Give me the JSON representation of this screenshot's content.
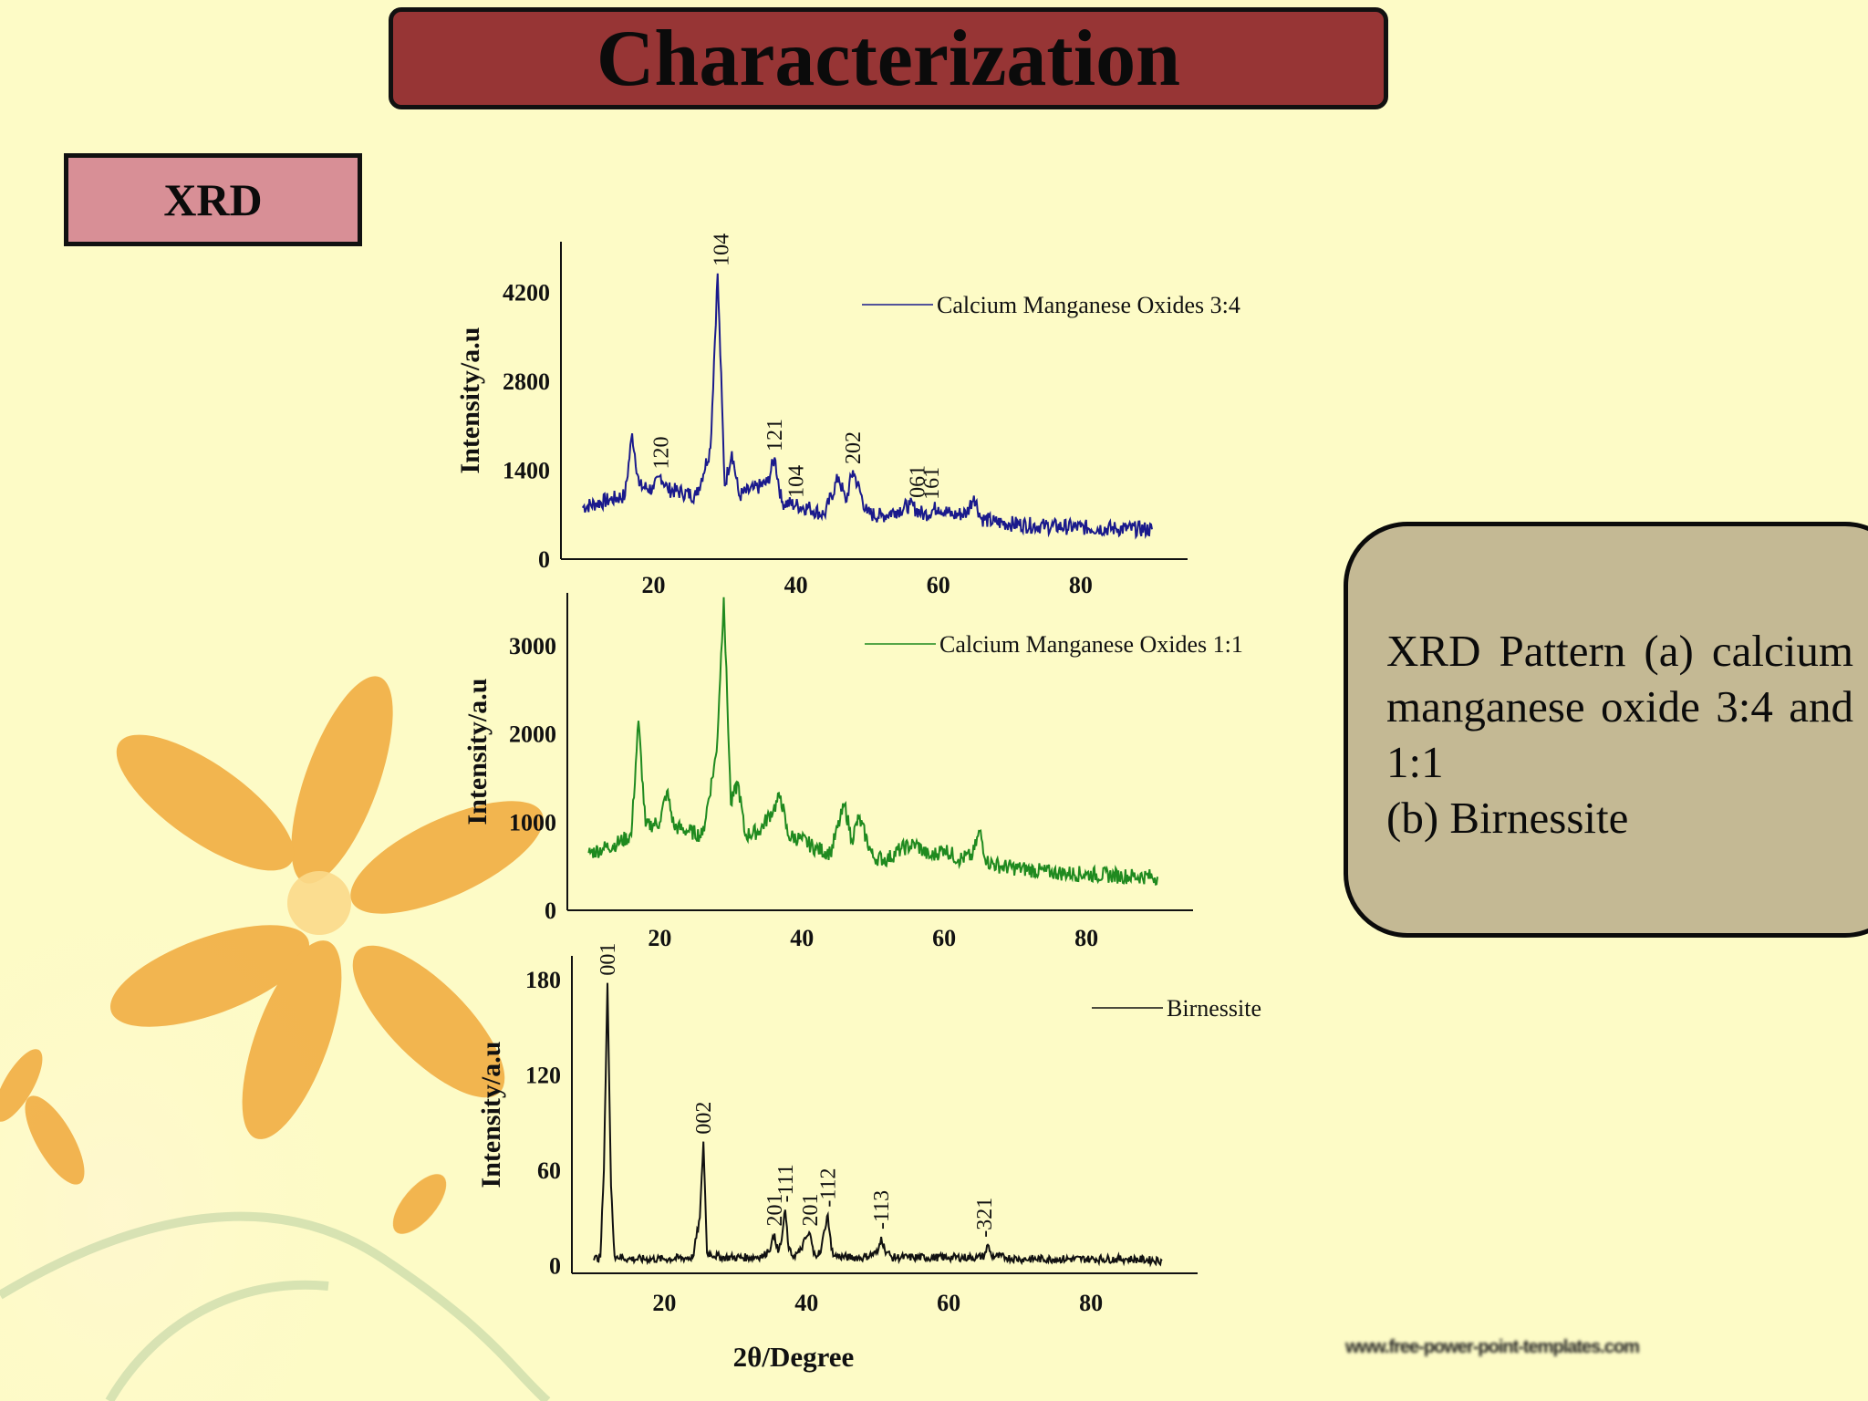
{
  "slide": {
    "title": "Characterization",
    "section_label": "XRD",
    "note_lines": [
      "XRD Pattern (a) calcium manganese oxide 3:4 and 1:1",
      "(b) Birnessite"
    ],
    "footer_url": "www.free-power-point-templates.com"
  },
  "colors": {
    "title_fill": "#973535",
    "xrd_fill": "#d88f96",
    "note_fill": "#c4b994",
    "bg": "#fdfbc6",
    "series_a": "#1a1a8c",
    "series_b": "#1f8a1f",
    "series_c": "#111111"
  },
  "chart_data": [
    {
      "type": "line",
      "ylabel": "Intensity/a.u",
      "xlabel": "",
      "xticks": [
        20,
        40,
        60,
        80
      ],
      "yticks": [
        0,
        1400,
        2800,
        4200
      ],
      "xlim": [
        7,
        95
      ],
      "ylim": [
        0,
        5000
      ],
      "series": [
        {
          "name": "Calcium Manganese Oxides  3:4",
          "color": "#1a1a8c",
          "x": [
            10,
            12,
            14,
            16,
            17,
            18,
            20,
            21,
            22,
            24,
            26,
            28,
            29,
            30,
            31,
            32,
            34,
            36,
            37,
            38,
            40,
            42,
            44,
            46,
            47,
            48,
            50,
            52,
            54,
            56,
            58,
            60,
            62,
            64,
            65,
            66,
            68,
            70,
            75,
            80,
            85,
            90
          ],
          "y": [
            820,
            880,
            940,
            1000,
            1980,
            1150,
            1100,
            1320,
            1100,
            1050,
            1000,
            1750,
            4500,
            1150,
            1700,
            1000,
            1100,
            1200,
            1600,
            900,
            850,
            800,
            700,
            1300,
            900,
            1400,
            720,
            680,
            760,
            850,
            700,
            820,
            690,
            730,
            1000,
            640,
            580,
            560,
            520,
            500,
            480,
            470
          ]
        }
      ],
      "peak_labels": [
        {
          "label": "104",
          "x": 29.5,
          "y": 4500
        },
        {
          "label": "120",
          "x": 21,
          "y": 1300
        },
        {
          "label": "121",
          "x": 37,
          "y": 1580
        },
        {
          "label": "104",
          "x": 40,
          "y": 850
        },
        {
          "label": "202",
          "x": 48,
          "y": 1380
        },
        {
          "label": "061",
          "x": 57,
          "y": 850
        },
        {
          "label": "161",
          "x": 59,
          "y": 820
        }
      ]
    },
    {
      "type": "line",
      "ylabel": "Intensity/a.u",
      "xlabel": "",
      "xticks": [
        20,
        40,
        60,
        80
      ],
      "yticks": [
        0,
        1000,
        2000,
        3000
      ],
      "xlim": [
        7,
        95
      ],
      "ylim": [
        0,
        3600
      ],
      "series": [
        {
          "name": "Calcium Manganese Oxides 1:1",
          "color": "#1f8a1f",
          "x": [
            10,
            12,
            14,
            16,
            17,
            18,
            20,
            21,
            22,
            24,
            26,
            28,
            29,
            30,
            31,
            32,
            34,
            36,
            37,
            38,
            40,
            42,
            44,
            46,
            47,
            48,
            50,
            52,
            54,
            56,
            58,
            60,
            62,
            64,
            65,
            66,
            68,
            70,
            75,
            80,
            85,
            90
          ],
          "y": [
            650,
            700,
            760,
            850,
            2150,
            950,
            1000,
            1350,
            950,
            900,
            850,
            1800,
            3550,
            1200,
            1450,
            850,
            900,
            1150,
            1300,
            850,
            800,
            700,
            650,
            1200,
            800,
            1050,
            600,
            580,
            700,
            750,
            600,
            700,
            580,
            620,
            900,
            550,
            500,
            480,
            430,
            410,
            390,
            380
          ]
        }
      ],
      "peak_labels": []
    },
    {
      "type": "line",
      "ylabel": "Intensity/a.u",
      "xlabel": "2θ/Degree",
      "xticks": [
        20,
        40,
        60,
        80
      ],
      "yticks": [
        0,
        60,
        120,
        180
      ],
      "xlim": [
        7,
        95
      ],
      "ylim": [
        -5,
        195
      ],
      "series": [
        {
          "name": "Birnessite",
          "color": "#111111",
          "x": [
            10,
            11,
            11.5,
            12,
            12.5,
            13,
            15,
            20,
            24,
            25,
            25.5,
            26,
            28,
            32,
            34,
            35,
            35.5,
            36,
            36.5,
            37,
            37.5,
            38,
            39,
            40,
            40.5,
            41,
            42,
            42.5,
            43,
            43.5,
            44,
            46,
            48,
            50,
            50.5,
            51,
            52,
            55,
            60,
            64,
            65,
            65.5,
            66,
            68,
            70,
            75,
            80,
            85,
            90
          ],
          "y": [
            4,
            5,
            60,
            178,
            50,
            6,
            4,
            4,
            5,
            30,
            78,
            8,
            5,
            5,
            6,
            12,
            20,
            8,
            16,
            35,
            10,
            6,
            8,
            18,
            20,
            7,
            8,
            22,
            32,
            10,
            6,
            5,
            5,
            8,
            18,
            10,
            5,
            5,
            5,
            5,
            6,
            13,
            6,
            5,
            4,
            4,
            4,
            4,
            3
          ]
        }
      ],
      "peak_labels": [
        {
          "label": "001",
          "x": 12,
          "y": 178
        },
        {
          "label": "002",
          "x": 25.5,
          "y": 78
        },
        {
          "label": "201",
          "x": 35.5,
          "y": 20
        },
        {
          "label": "-111",
          "x": 37,
          "y": 35
        },
        {
          "label": "201",
          "x": 40.5,
          "y": 20
        },
        {
          "label": "-112",
          "x": 43,
          "y": 32
        },
        {
          "label": "-113",
          "x": 50.5,
          "y": 18
        },
        {
          "label": "-321",
          "x": 65,
          "y": 13
        }
      ]
    }
  ]
}
